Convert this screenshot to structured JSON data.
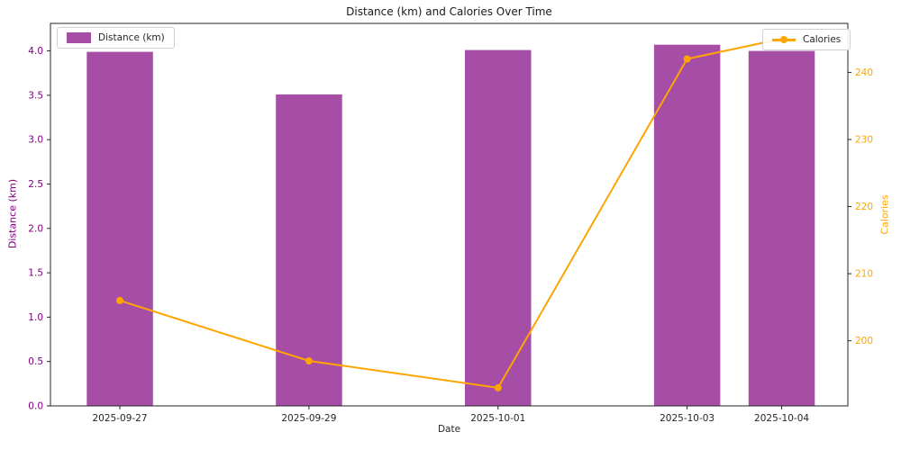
{
  "chart_data": {
    "type": "bar+line",
    "title": "Distance (km) and Calories Over Time",
    "xlabel": "Date",
    "categories": [
      "2025-09-27",
      "2025-09-29",
      "2025-10-01",
      "2025-10-03",
      "2025-10-04"
    ],
    "x_day_offsets": [
      0,
      2,
      4,
      6,
      7
    ],
    "xlim_days": [
      -0.734,
      7.7
    ],
    "bar_width_days": 0.7,
    "series": [
      {
        "name": "Distance (km)",
        "type": "bar",
        "axis": "left",
        "color": "#a64da6",
        "values": [
          3.99,
          3.51,
          4.01,
          4.07,
          4.0
        ]
      },
      {
        "name": "Calories",
        "type": "line",
        "axis": "right",
        "color": "#ffa500",
        "marker": "circle",
        "values": [
          206,
          197,
          193,
          242,
          245
        ]
      }
    ],
    "left_axis": {
      "label": "Distance (km)",
      "color": "#800080",
      "tick_labels": [
        "0.0",
        "0.5",
        "1.0",
        "1.5",
        "2.0",
        "2.5",
        "3.0",
        "3.5",
        "4.0"
      ],
      "tick_values": [
        0,
        0.5,
        1,
        1.5,
        2,
        2.5,
        3,
        3.5,
        4
      ],
      "lim": [
        0,
        4.31
      ]
    },
    "right_axis": {
      "label": "Calories",
      "color": "#ffa500",
      "tick_labels": [
        "200",
        "210",
        "220",
        "230",
        "240"
      ],
      "tick_values": [
        200,
        210,
        220,
        230,
        240
      ],
      "lim": [
        190.3,
        247.3
      ]
    },
    "x_axis": {
      "label": "Date",
      "tick_labels": [
        "2025-09-27",
        "2025-09-29",
        "2025-10-01",
        "2025-10-03",
        "2025-10-04"
      ],
      "color": "#262626"
    },
    "legend": {
      "distance_label": "Distance (km)",
      "calories_label": "Calories",
      "positions": [
        "upper left",
        "upper right"
      ]
    },
    "grid": false,
    "spine_color": "#262626"
  }
}
